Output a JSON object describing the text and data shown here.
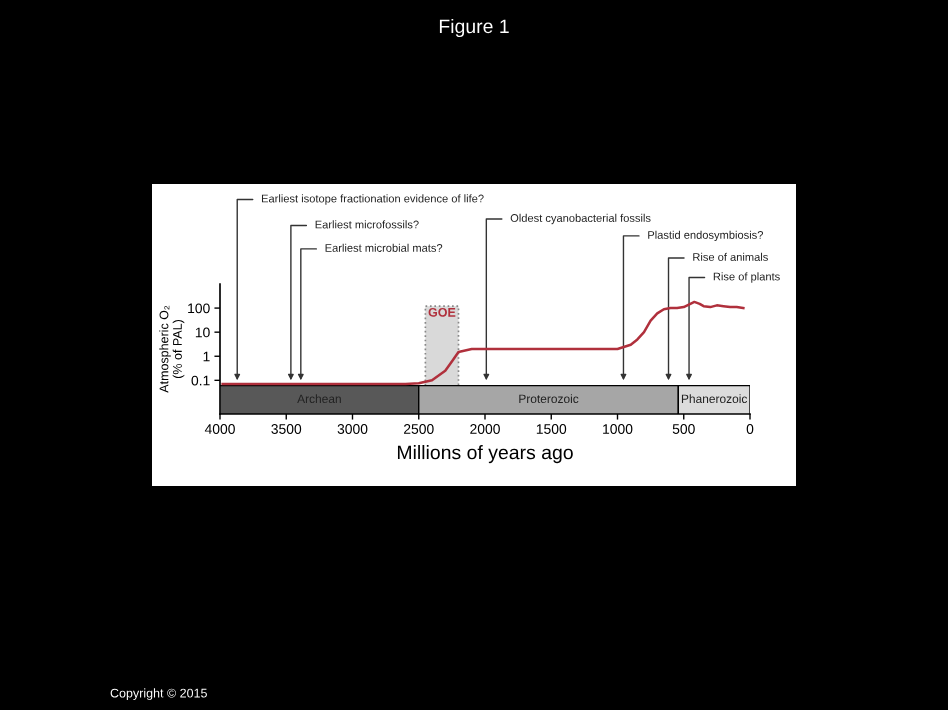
{
  "chart_data": {
    "type": "line",
    "title": "Figure 1",
    "xlabel": "Millions of years ago",
    "ylabel": "Atmospheric O₂\n(% of PAL)",
    "x": [
      3980,
      3500,
      3000,
      2600,
      2500,
      2400,
      2300,
      2250,
      2200,
      2100,
      2000,
      1500,
      1000,
      900,
      850,
      800,
      750,
      700,
      650,
      600,
      550,
      500,
      450,
      420,
      380,
      350,
      300,
      250,
      200,
      150,
      100,
      50
    ],
    "series": [
      {
        "color": "#b0303c",
        "values": [
          0.07,
          0.07,
          0.07,
          0.07,
          0.075,
          0.1,
          0.25,
          0.6,
          1.5,
          2,
          2,
          2,
          2,
          3,
          5,
          10,
          30,
          60,
          90,
          100,
          100,
          110,
          150,
          180,
          150,
          120,
          110,
          130,
          120,
          110,
          110,
          100
        ]
      }
    ],
    "log": "y",
    "xlim": [
      4000,
      0
    ],
    "ylim": [
      0.004,
      1000
    ],
    "xticks": [
      4000,
      3500,
      3000,
      2500,
      2000,
      1500,
      1000,
      500,
      0
    ],
    "yticks": [
      0.1,
      1,
      10,
      100
    ],
    "grid": false,
    "bands": [
      {
        "axis": "x",
        "from": 2450,
        "to": 2200,
        "label": "GOE",
        "color": "#d9d9d9"
      },
      {
        "axis": "x",
        "from": 4000,
        "to": 2500,
        "label": "Archean",
        "color": "#585858"
      },
      {
        "axis": "x",
        "from": 2500,
        "to": 541,
        "label": "Proterozoic",
        "color": "#a6a6a6"
      },
      {
        "axis": "x",
        "from": 541,
        "to": 0,
        "label": "Phanerozoic",
        "color": "#dcdcdc"
      }
    ],
    "annotations": [
      {
        "text": "Earliest isotope fractionation evidence of life?",
        "x": 3870,
        "y": 0.1
      },
      {
        "text": "Earliest microfossils?",
        "x": 3465,
        "y": 0.1
      },
      {
        "text": "Earliest microbial mats?",
        "x": 3390,
        "y": 0.1
      },
      {
        "text": "Oldest cyanobacterial fossils",
        "x": 1990,
        "y": 0.1
      },
      {
        "text": "Plastid endosymbiosis?",
        "x": 955,
        "y": 0.1
      },
      {
        "text": "Rise of animals",
        "x": 615,
        "y": 0.1
      },
      {
        "text": "Rise of plants",
        "x": 460,
        "y": 0.1
      },
      "Copyright © 2015"
    ]
  }
}
